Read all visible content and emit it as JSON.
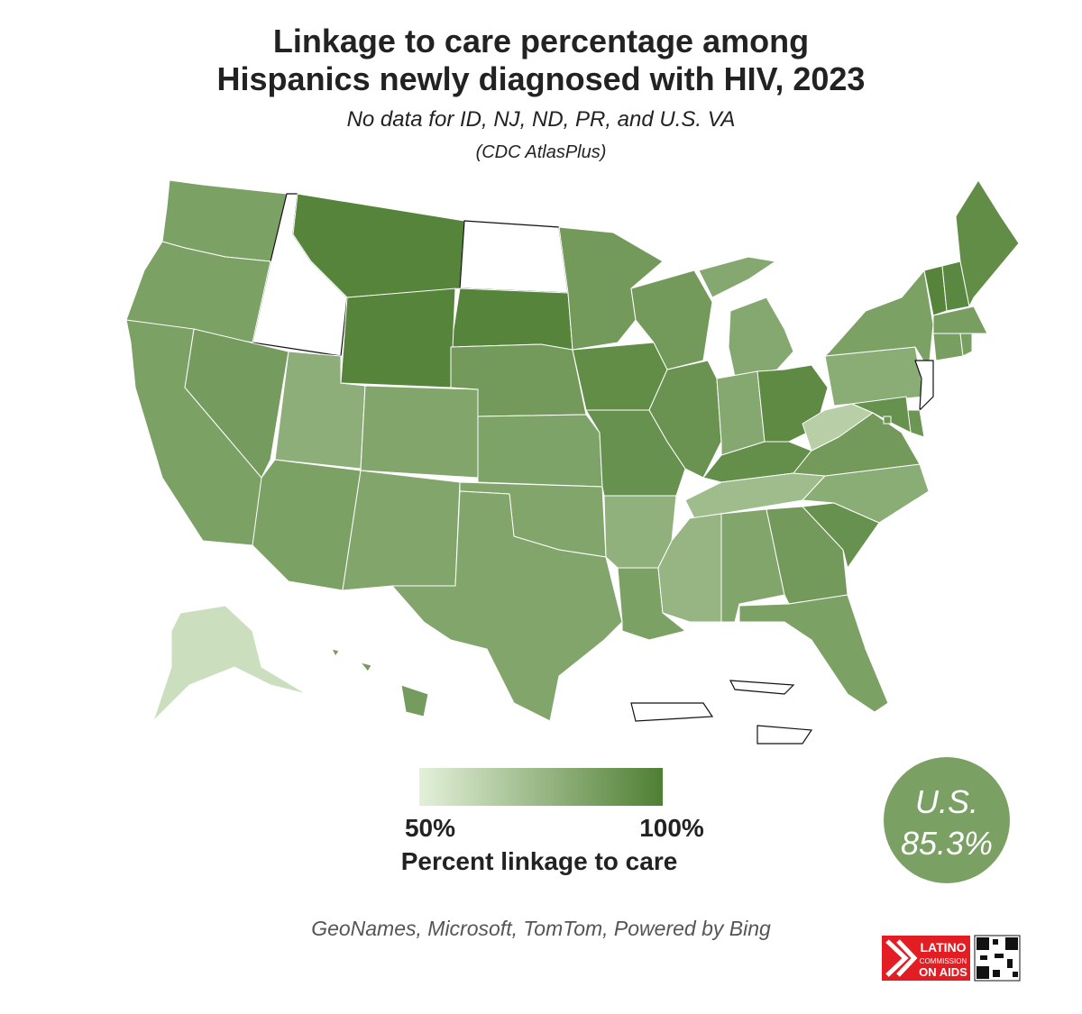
{
  "chart_data": {
    "type": "choropleth",
    "title": "Linkage to care percentage among\nHispanics newly diagnosed with HIV, 2023",
    "subtitle": "No data for ID, NJ, ND, PR, and U.S. VA",
    "source": "(CDC AtlasPlus)",
    "values": [
      85,
      null,
      85,
      98,
      null,
      98,
      98,
      87,
      85,
      79,
      83,
      85,
      83,
      88,
      84,
      83,
      83,
      88,
      94,
      92,
      78,
      85,
      88,
      91,
      82,
      82,
      95,
      93,
      73,
      76,
      83,
      88,
      85,
      92,
      80,
      88,
      65,
      80,
      85,
      null,
      90,
      92,
      90,
      98,
      96,
      94,
      86,
      86,
      86,
      58,
      87,
      null,
      null
    ],
    "color_scale": {
      "range": [
        50,
        100
      ],
      "colors": [
        "#e3f0d9",
        "#4f7f33"
      ],
      "no_data_color": "#ffffff"
    },
    "legend": {
      "title": "Percent linkage to care",
      "ticks": [
        {
          "value": 50,
          "label": "50%"
        },
        {
          "value": 100,
          "label": "100%"
        }
      ]
    },
    "national": {
      "label": "U.S.",
      "value": 85.3,
      "value_label": "85.3%"
    },
    "attribution": "GeoNames, Microsoft, TomTom, Powered by Bing",
    "logo": [
      "LATINO",
      "COMMISSION",
      "ON AIDS"
    ]
  }
}
